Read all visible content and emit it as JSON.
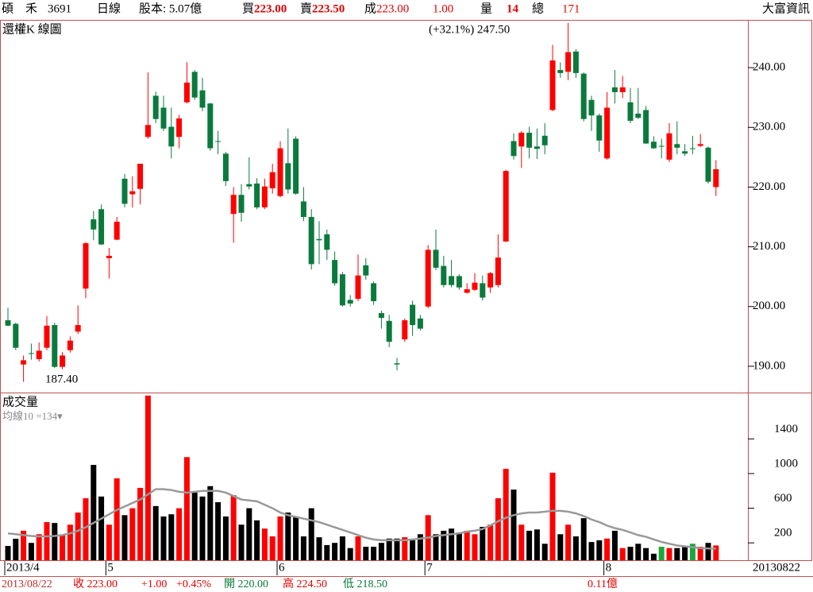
{
  "header": {
    "stock": "碩　禾",
    "code": "3691",
    "period": "日線",
    "capital": "股本: 5.07億",
    "bid_label": "買",
    "bid": "223.00",
    "ask_label": "賣",
    "ask": "223.50",
    "deal_label": "成",
    "deal": "223.00",
    "change": "1.00",
    "vol_label": "量",
    "vol": "14",
    "total_label": "總",
    "total": "171",
    "brand": "大富資訊"
  },
  "footer": {
    "date": "2013/08/22",
    "close": "收 223.00",
    "change": "+1.00",
    "change_pct": "+0.45%",
    "open": "開 220.00",
    "high": "高 224.50",
    "low": "低 218.50",
    "amount": "0.11億",
    "last_date": "20130822"
  },
  "chart_data": [
    {
      "type": "candlestick",
      "title": "還權K 線圖",
      "annotations": [
        "(+32.1%) 247.50",
        "187.40"
      ],
      "up_color": "#ff0000",
      "down_color": "#0a7a3c",
      "categories": [
        "2013/4",
        null,
        null,
        null,
        null,
        null,
        null,
        null,
        null,
        null,
        null,
        null,
        null,
        "5",
        null,
        null,
        null,
        null,
        null,
        null,
        null,
        null,
        null,
        null,
        null,
        null,
        null,
        null,
        null,
        null,
        null,
        null,
        null,
        null,
        null,
        "6",
        null,
        null,
        null,
        null,
        null,
        null,
        null,
        null,
        null,
        null,
        null,
        null,
        null,
        null,
        null,
        null,
        null,
        null,
        "7",
        null,
        null,
        null,
        null,
        null,
        null,
        null,
        null,
        null,
        null,
        null,
        null,
        null,
        null,
        null,
        null,
        null,
        null,
        null,
        null,
        null,
        null,
        "8",
        null,
        null,
        null,
        null,
        null,
        null,
        null,
        null,
        null,
        null,
        null,
        null,
        null,
        null
      ],
      "open": [
        197.7,
        197.1,
        190.3,
        192.2,
        191.2,
        193.1,
        196.9,
        189.9,
        192.7,
        195.8,
        203.0,
        214.6,
        216.3,
        208.1,
        211.2,
        221.4,
        218.8,
        219.7,
        228.4,
        235.3,
        233.3,
        230.1,
        228.4,
        234.2,
        239.3,
        236.2,
        234.0,
        227.7,
        225.6,
        215.5,
        218.7,
        220.5,
        220.6,
        216.6,
        219.8,
        218.5,
        224.0,
        228.1,
        217.6,
        215.0,
        211.3,
        212.1,
        207.8,
        205.4,
        201.1,
        201.3,
        206.9,
        203.9,
        198.9,
        197.6,
        190.5,
        194.5,
        200.3,
        198.0,
        200.0,
        209.5,
        206.8,
        205.1,
        205.1,
        202.3,
        202.8,
        203.9,
        203.2,
        203.6,
        210.9,
        227.7,
        226.8,
        229.1,
        226.8,
        228.6,
        232.9,
        239.6,
        239.3,
        242.7,
        239.0,
        234.6,
        232.0,
        224.8,
        236.7,
        235.9,
        234.2,
        232.3,
        232.9,
        227.6,
        226.9,
        224.6,
        227.2,
        226.0,
        226.5,
        226.9,
        226.6,
        220.0
      ],
      "high": [
        199.8,
        197.3,
        191.8,
        193.8,
        194.0,
        198.4,
        197.3,
        192.4,
        195.0,
        200.2,
        210.8,
        216.0,
        217.1,
        209.8,
        215.0,
        222.2,
        221.8,
        223.9,
        239.2,
        236.0,
        235.3,
        233.3,
        232.1,
        240.9,
        239.6,
        238.3,
        234.1,
        229.4,
        225.9,
        220.0,
        220.5,
        225.0,
        221.5,
        221.4,
        223.9,
        227.7,
        229.8,
        228.5,
        220.0,
        216.3,
        214.3,
        212.9,
        209.2,
        205.8,
        201.9,
        208.7,
        208.1,
        204.2,
        199.3,
        198.6,
        191.4,
        198.0,
        201.0,
        198.6,
        210.3,
        212.9,
        208.5,
        207.8,
        205.4,
        203.9,
        205.6,
        205.2,
        205.8,
        212.1,
        222.9,
        229.0,
        229.4,
        230.1,
        229.8,
        230.7,
        243.8,
        240.9,
        247.5,
        243.1,
        239.2,
        235.3,
        232.3,
        235.9,
        239.6,
        238.6,
        236.6,
        236.6,
        233.6,
        228.5,
        228.1,
        230.7,
        231.0,
        227.2,
        228.6,
        228.9,
        226.8,
        224.5
      ],
      "low": [
        196.7,
        192.7,
        187.4,
        191.1,
        190.8,
        192.7,
        189.7,
        189.5,
        192.3,
        195.4,
        201.4,
        211.1,
        210.3,
        204.7,
        211.1,
        216.6,
        216.6,
        217.1,
        228.1,
        230.7,
        229.4,
        224.8,
        226.5,
        234.0,
        234.6,
        232.7,
        226.1,
        225.5,
        220.2,
        210.7,
        214.2,
        219.6,
        216.3,
        216.3,
        218.9,
        218.3,
        218.9,
        218.7,
        214.3,
        206.2,
        207.1,
        207.8,
        203.5,
        200.0,
        200.0,
        200.9,
        204.5,
        200.3,
        196.3,
        193.2,
        189.3,
        194.1,
        195.1,
        196.0,
        199.7,
        206.1,
        203.2,
        203.2,
        202.8,
        202.2,
        202.6,
        201.0,
        202.3,
        203.2,
        210.8,
        224.6,
        223.2,
        224.8,
        224.7,
        225.5,
        232.7,
        238.3,
        237.9,
        238.3,
        231.0,
        229.4,
        225.9,
        224.6,
        234.0,
        234.9,
        230.7,
        231.4,
        227.2,
        226.4,
        224.8,
        224.2,
        225.5,
        225.2,
        225.5,
        226.7,
        220.6,
        218.5
      ],
      "close": [
        196.8,
        193.1,
        191.0,
        192.1,
        192.6,
        196.8,
        189.9,
        191.8,
        194.3,
        196.9,
        210.6,
        212.9,
        210.4,
        208.5,
        214.2,
        217.2,
        219.3,
        223.9,
        230.4,
        231.4,
        229.8,
        226.8,
        231.5,
        237.5,
        235.0,
        233.3,
        226.5,
        227.6,
        221.0,
        218.7,
        215.7,
        220.1,
        216.6,
        220.1,
        222.5,
        226.5,
        219.6,
        218.9,
        215.0,
        207.1,
        211.1,
        209.5,
        203.9,
        200.2,
        200.5,
        205.2,
        205.2,
        200.9,
        198.1,
        194.1,
        190.3,
        197.7,
        196.9,
        196.3,
        209.5,
        206.5,
        203.6,
        203.6,
        203.2,
        202.9,
        204.0,
        201.5,
        205.6,
        208.2,
        222.7,
        225.2,
        229.1,
        226.6,
        226.4,
        227.0,
        241.2,
        239.1,
        242.6,
        239.1,
        231.4,
        232.0,
        227.8,
        233.3,
        235.9,
        236.7,
        231.1,
        231.6,
        227.3,
        226.5,
        226.9,
        229.0,
        226.6,
        225.6,
        226.5,
        227.2,
        220.9,
        223.0
      ],
      "ylim": [
        185.6,
        248
      ],
      "yticks": [
        {
          "value": 190,
          "label": "190.00"
        },
        {
          "value": 200,
          "label": "200.00"
        },
        {
          "value": 210,
          "label": "210.00"
        },
        {
          "value": 220,
          "label": "220.00"
        },
        {
          "value": 230,
          "label": "230.00"
        },
        {
          "value": 240,
          "label": "240.00"
        }
      ]
    },
    {
      "type": "bar",
      "title": "成交量",
      "up_color": "#ff0000",
      "down_color": "#000000",
      "flat_color": "#1aa83a",
      "values": [
        165,
        248,
        340,
        200,
        300,
        440,
        430,
        290,
        410,
        550,
        715,
        1100,
        735,
        410,
        945,
        520,
        600,
        835,
        1900,
        625,
        505,
        530,
        600,
        1190,
        780,
        735,
        855,
        670,
        505,
        750,
        410,
        600,
        460,
        365,
        275,
        505,
        550,
        505,
        275,
        600,
        265,
        175,
        200,
        275,
        140,
        275,
        155,
        155,
        200,
        250,
        250,
        265,
        230,
        300,
        520,
        300,
        340,
        365,
        320,
        340,
        300,
        385,
        410,
        715,
        1055,
        815,
        410,
        340,
        355,
        190,
        1010,
        300,
        410,
        275,
        485,
        210,
        230,
        250,
        340,
        140,
        155,
        190,
        140,
        75,
        155,
        140,
        140,
        150,
        190,
        155,
        200,
        170
      ],
      "ma": {
        "name": "均線10 =134▾",
        "color": "#999999",
        "values": [
          310,
          300,
          290,
          280,
          275,
          275,
          280,
          290,
          310,
          340,
          380,
          430,
          480,
          530,
          580,
          620,
          660,
          700,
          760,
          820,
          820,
          810,
          790,
          780,
          790,
          800,
          800,
          800,
          780,
          740,
          700,
          690,
          680,
          640,
          600,
          550,
          520,
          500,
          480,
          460,
          440,
          410,
          380,
          350,
          320,
          290,
          260,
          240,
          230,
          230,
          230,
          230,
          240,
          250,
          260,
          280,
          290,
          300,
          310,
          330,
          340,
          360,
          400,
          450,
          490,
          520,
          540,
          550,
          550,
          560,
          570,
          570,
          560,
          540,
          510,
          470,
          440,
          400,
          370,
          350,
          320,
          290,
          270,
          240,
          210,
          190,
          170,
          160,
          150,
          140,
          135,
          134
        ]
      },
      "ylim": [
        0,
        1935
      ],
      "yticks": [
        200,
        600,
        1000,
        1400
      ]
    }
  ]
}
